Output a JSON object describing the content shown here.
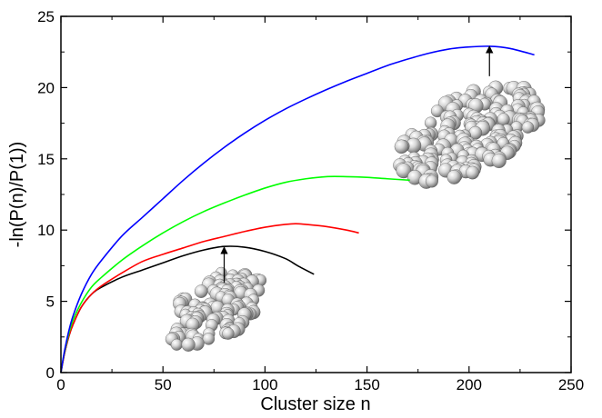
{
  "chart_data": {
    "type": "line",
    "xlabel": "Cluster size n",
    "ylabel": "-ln(P(n)/P(1))",
    "xlim": [
      0,
      250
    ],
    "ylim": [
      0,
      25
    ],
    "x_ticks": [
      0,
      50,
      100,
      150,
      200,
      250
    ],
    "y_ticks": [
      0,
      5,
      10,
      15,
      20,
      25
    ],
    "grid": false,
    "legend": "none",
    "series": [
      {
        "color": "#000000",
        "x": [
          0,
          1,
          2,
          4,
          6,
          10,
          15,
          20,
          30,
          40,
          50,
          60,
          70,
          80,
          90,
          100,
          110,
          116,
          124
        ],
        "y": [
          0,
          0.8,
          1.5,
          2.6,
          3.4,
          4.6,
          5.5,
          6.0,
          6.7,
          7.2,
          7.7,
          8.2,
          8.6,
          8.85,
          8.8,
          8.5,
          8.0,
          7.5,
          6.9
        ]
      },
      {
        "color": "#ff0000",
        "x": [
          0,
          1,
          2,
          4,
          6,
          10,
          15,
          20,
          30,
          40,
          50,
          60,
          70,
          80,
          90,
          100,
          110,
          115,
          120,
          130,
          140,
          146
        ],
        "y": [
          0,
          0.8,
          1.5,
          2.6,
          3.4,
          4.6,
          5.5,
          6.1,
          7.0,
          7.8,
          8.3,
          8.75,
          9.2,
          9.55,
          9.9,
          10.2,
          10.4,
          10.45,
          10.4,
          10.25,
          10.0,
          9.8
        ]
      },
      {
        "color": "#00ff00",
        "x": [
          0,
          1,
          2,
          4,
          6,
          10,
          15,
          20,
          30,
          40,
          50,
          60,
          70,
          80,
          90,
          100,
          110,
          120,
          130,
          140,
          150,
          160,
          171
        ],
        "y": [
          0,
          0.9,
          1.6,
          2.8,
          3.7,
          4.9,
          6.0,
          6.7,
          7.9,
          8.9,
          9.8,
          10.6,
          11.3,
          11.9,
          12.45,
          12.95,
          13.35,
          13.6,
          13.75,
          13.75,
          13.7,
          13.6,
          13.5
        ]
      },
      {
        "color": "#0000ff",
        "x": [
          0,
          1,
          2,
          4,
          6,
          10,
          15,
          20,
          30,
          40,
          50,
          60,
          70,
          80,
          90,
          100,
          110,
          120,
          130,
          140,
          150,
          160,
          170,
          180,
          190,
          200,
          210,
          220,
          232
        ],
        "y": [
          0,
          0.9,
          1.7,
          3.0,
          4.0,
          5.5,
          6.9,
          7.9,
          9.6,
          10.9,
          12.2,
          13.5,
          14.7,
          15.8,
          16.8,
          17.7,
          18.5,
          19.2,
          19.85,
          20.45,
          21.0,
          21.55,
          22.0,
          22.4,
          22.7,
          22.85,
          22.9,
          22.75,
          22.3
        ]
      }
    ],
    "annotations": [
      {
        "type": "arrow",
        "from": [
          80,
          6.3
        ],
        "to": [
          80,
          8.8
        ]
      },
      {
        "type": "arrow",
        "from": [
          210,
          20.8
        ],
        "to": [
          210,
          22.9
        ]
      }
    ]
  }
}
